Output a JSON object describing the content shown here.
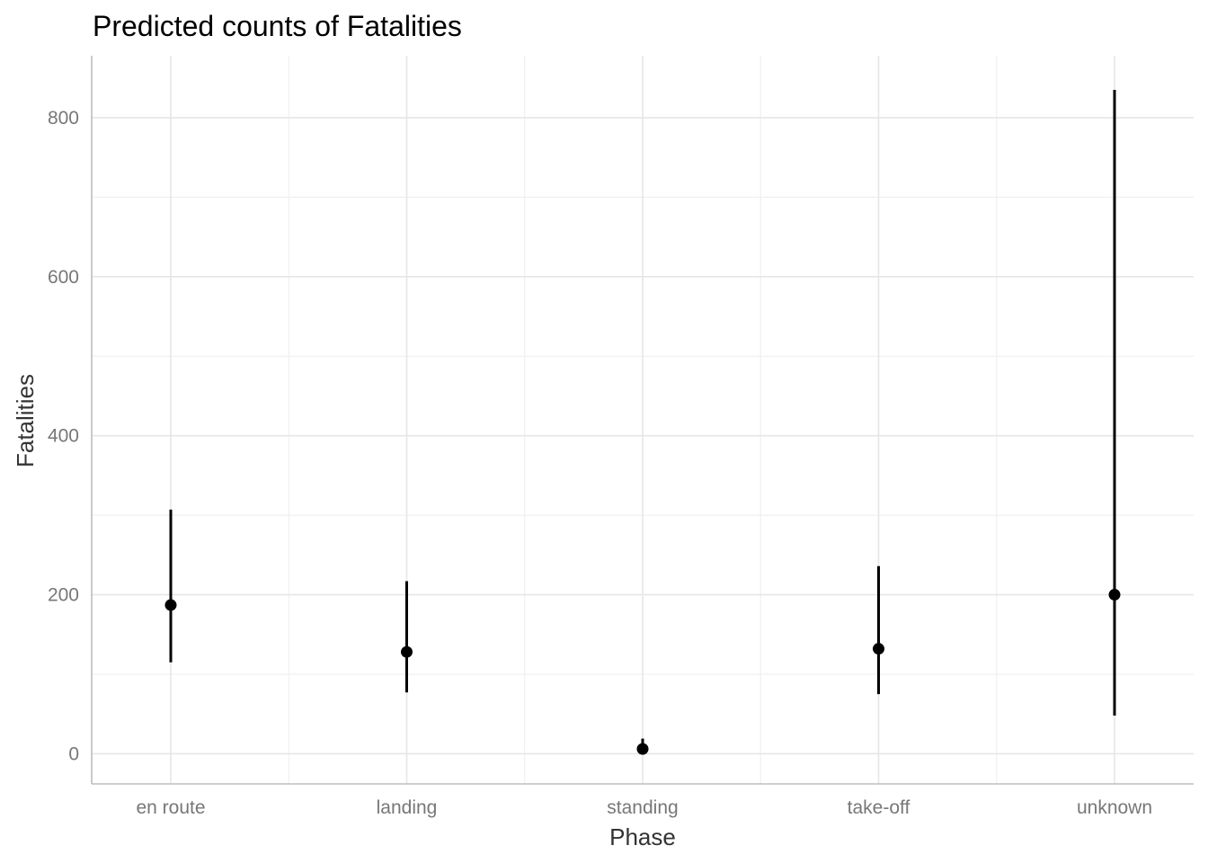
{
  "chart_data": {
    "type": "scatter",
    "title": "Predicted counts of Fatalities",
    "xlabel": "Phase",
    "ylabel": "Fatalities",
    "categories": [
      "en route",
      "landing",
      "standing",
      "take-off",
      "unknown"
    ],
    "estimates": [
      187,
      128,
      6,
      132,
      200
    ],
    "lower": [
      115,
      77,
      0,
      75,
      48
    ],
    "upper": [
      307,
      217,
      19,
      236,
      835
    ],
    "ylim": [
      -38,
      878
    ],
    "yticks": [
      0,
      200,
      400,
      600,
      800
    ],
    "ytick_labels": [
      "0",
      "200",
      "400",
      "600",
      "800"
    ],
    "grid": true,
    "colors": {
      "marks": "#000000",
      "grid": "#e6e6e6",
      "axis": "#bdbdbd"
    }
  }
}
